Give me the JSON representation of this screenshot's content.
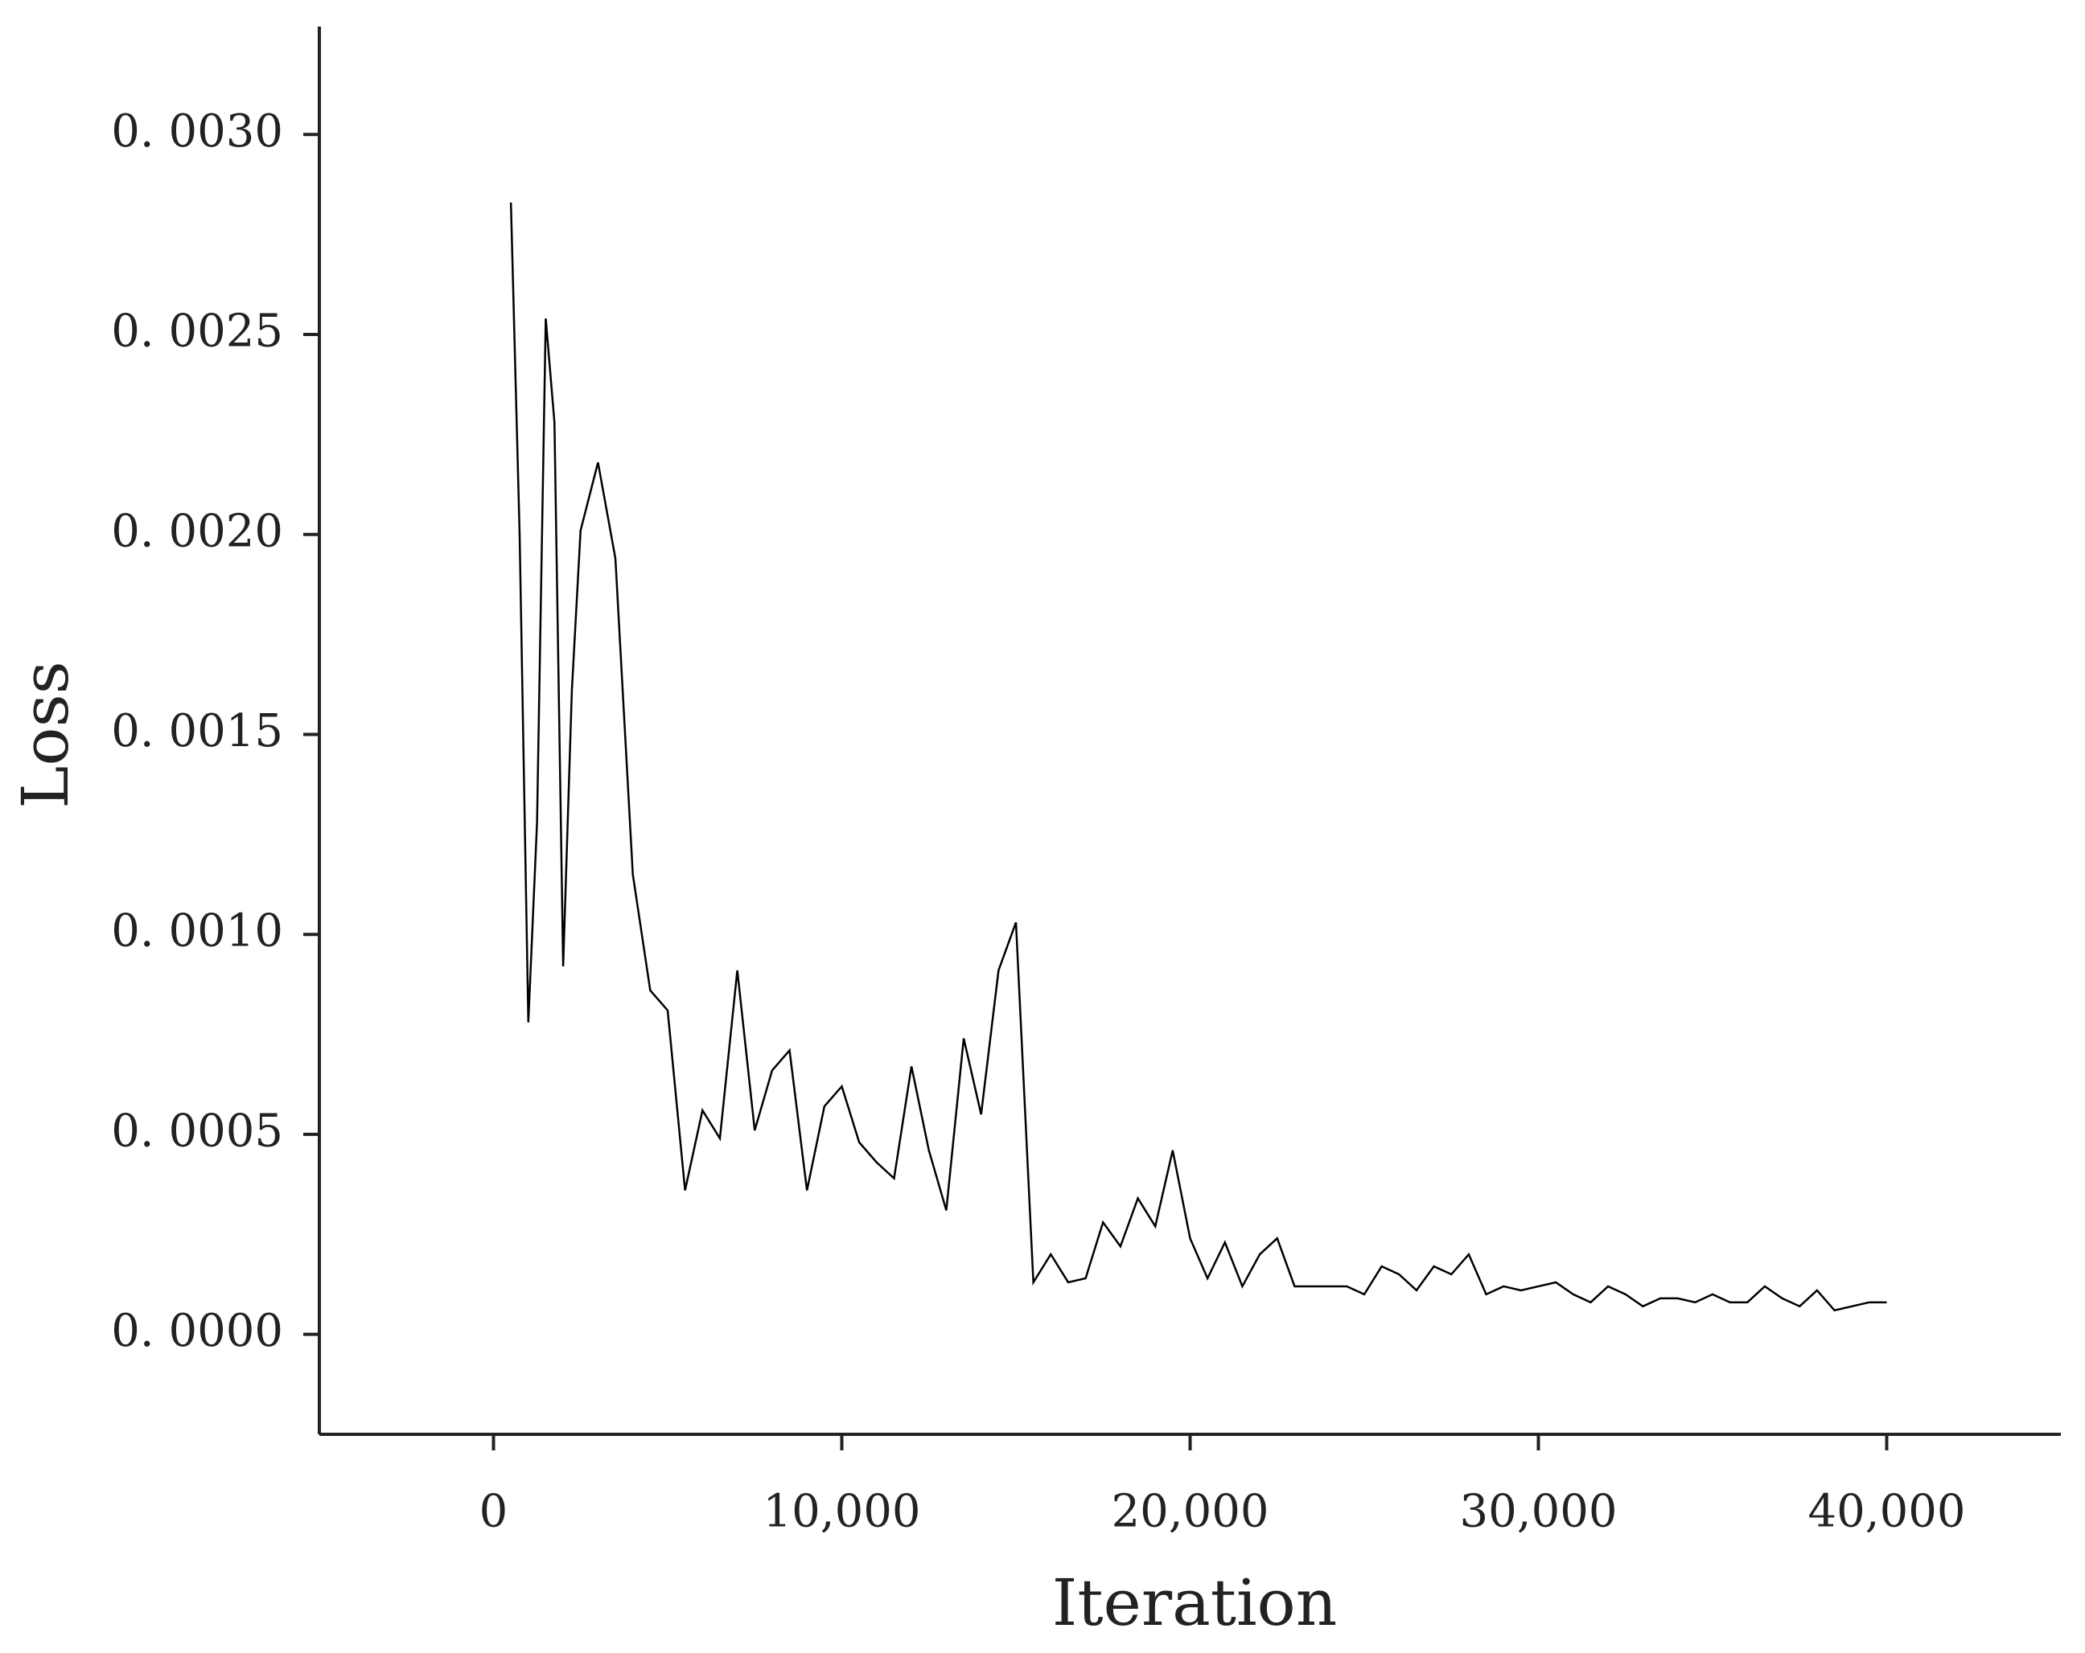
{
  "chart_data": {
    "type": "line",
    "x_label": "Iteration",
    "y_label": "Loss",
    "xlim": [
      -5000,
      45000
    ],
    "xticks": [
      0,
      {
        "value": 10000,
        "label": "10,000"
      },
      {
        "value": 20000,
        "label": "20,000"
      },
      {
        "value": 30000,
        "label": "30,000"
      },
      {
        "value": 40000,
        "label": "40,000"
      }
    ],
    "ylim": [
      -0.00025,
      0.00327
    ],
    "yticks": [
      {
        "value": 0,
        "label": "0. 0000"
      },
      {
        "value": 0.0005,
        "label": "0. 0005"
      },
      {
        "value": 0.001,
        "label": "0. 0010"
      },
      {
        "value": 0.0015,
        "label": "0. 0015"
      },
      {
        "value": 0.002,
        "label": "0. 0020"
      },
      {
        "value": 0.0025,
        "label": "0. 0025"
      },
      {
        "value": 0.003,
        "label": "0. 0030"
      }
    ],
    "grid": false,
    "color": "#000000",
    "x": [
      500,
      750,
      1000,
      1250,
      1500,
      1750,
      2000,
      2250,
      2500,
      3000,
      3500,
      4000,
      4500,
      5000,
      5500,
      6000,
      6500,
      7000,
      7500,
      8000,
      8500,
      9000,
      9500,
      10000,
      10500,
      11000,
      11500,
      12000,
      12500,
      13000,
      13500,
      14000,
      14500,
      15000,
      15500,
      16000,
      16500,
      17000,
      17500,
      18000,
      18500,
      19000,
      19500,
      20000,
      20500,
      21000,
      21500,
      22000,
      22500,
      23000,
      24000,
      24500,
      25000,
      25500,
      26000,
      26500,
      27000,
      27500,
      28000,
      28500,
      29000,
      29500,
      30000,
      30500,
      31000,
      31500,
      32000,
      32500,
      33000,
      33500,
      34000,
      34500,
      35000,
      35500,
      36000,
      36500,
      37000,
      37500,
      38000,
      38500,
      39000,
      39500,
      40000
    ],
    "values": [
      0.00283,
      0.002,
      0.00078,
      0.00128,
      0.00254,
      0.00228,
      0.00092,
      0.00161,
      0.00201,
      0.00218,
      0.00194,
      0.00115,
      0.00086,
      0.00081,
      0.00036,
      0.00056,
      0.00049,
      0.00091,
      0.00051,
      0.00066,
      0.00071,
      0.00036,
      0.00057,
      0.00062,
      0.00048,
      0.00043,
      0.00039,
      0.00067,
      0.00046,
      0.00031,
      0.00074,
      0.00055,
      0.00091,
      0.00103,
      0.00013,
      0.0002,
      0.00013,
      0.00014,
      0.00028,
      0.00022,
      0.00034,
      0.00027,
      0.00046,
      0.00024,
      0.00014,
      0.00023,
      0.00012,
      0.0002,
      0.00024,
      0.00012,
      0.00012,
      0.00012,
      0.0001,
      0.00017,
      0.00015,
      0.00011,
      0.00017,
      0.00015,
      0.0002,
      0.0001,
      0.00012,
      0.00011,
      0.00012,
      0.00013,
      0.0001,
      8e-05,
      0.00012,
      0.0001,
      7e-05,
      9e-05,
      9e-05,
      8e-05,
      0.0001,
      8e-05,
      8e-05,
      0.00012,
      9e-05,
      7e-05,
      0.00011,
      6e-05,
      7e-05,
      8e-05,
      8e-05
    ]
  }
}
